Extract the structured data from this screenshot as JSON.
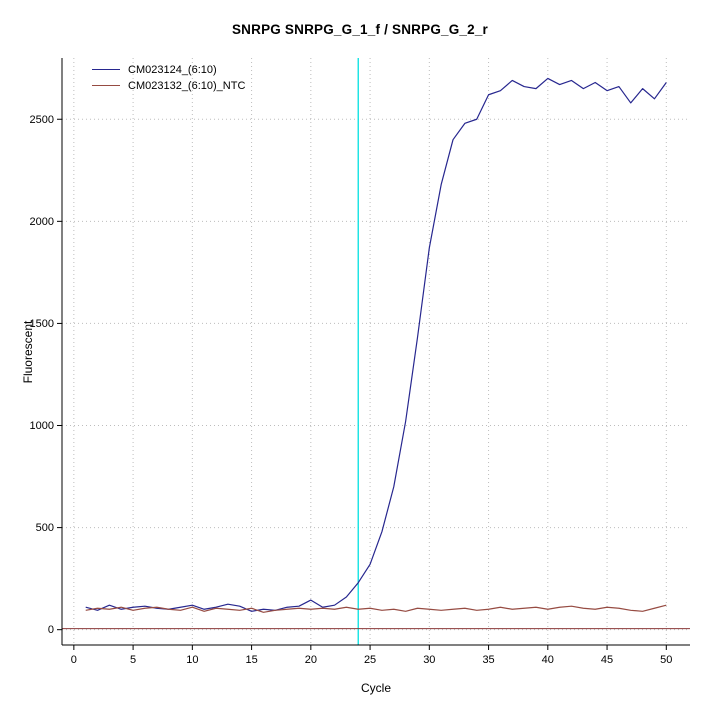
{
  "chart_data": {
    "type": "line",
    "title": "SNRPG  SNRPG_G_1_f / SNRPG_G_2_r",
    "xlabel": "Cycle",
    "ylabel": "Fluorescent",
    "xlim": [
      -1,
      52
    ],
    "ylim": [
      -75,
      2800
    ],
    "x_ticks": [
      0,
      5,
      10,
      15,
      20,
      25,
      30,
      35,
      40,
      45,
      50
    ],
    "y_ticks": [
      0,
      500,
      1000,
      1500,
      2000,
      2500
    ],
    "grid": "dotted",
    "grid_color": "#bdbdbd",
    "axis_color": "#000000",
    "legend_position": "top-left",
    "vline": {
      "x": 24,
      "color": "#00e0e0"
    },
    "baseline": {
      "y": 5,
      "color": "#8b3a3a"
    },
    "x": [
      1,
      2,
      3,
      4,
      5,
      6,
      7,
      8,
      9,
      10,
      11,
      12,
      13,
      14,
      15,
      16,
      17,
      18,
      19,
      20,
      21,
      22,
      23,
      24,
      25,
      26,
      27,
      28,
      29,
      30,
      31,
      32,
      33,
      34,
      35,
      36,
      37,
      38,
      39,
      40,
      41,
      42,
      43,
      44,
      45,
      46,
      47,
      48,
      49,
      50
    ],
    "series": [
      {
        "name": "CM023124_(6:10)",
        "color": "#27278f",
        "values": [
          110,
          95,
          120,
          100,
          110,
          115,
          105,
          100,
          110,
          120,
          100,
          110,
          125,
          115,
          90,
          100,
          95,
          110,
          115,
          145,
          110,
          120,
          160,
          230,
          320,
          480,
          700,
          1020,
          1430,
          1870,
          2180,
          2400,
          2480,
          2500,
          2620,
          2640,
          2690,
          2660,
          2650,
          2700,
          2670,
          2690,
          2650,
          2680,
          2640,
          2660,
          2580,
          2650,
          2600,
          2680
        ]
      },
      {
        "name": "CM023132_(6:10)_NTC",
        "color": "#964b42",
        "values": [
          95,
          105,
          100,
          110,
          95,
          105,
          110,
          100,
          95,
          110,
          90,
          105,
          100,
          95,
          105,
          85,
          95,
          100,
          105,
          100,
          105,
          100,
          110,
          100,
          105,
          95,
          100,
          90,
          105,
          100,
          95,
          100,
          105,
          95,
          100,
          110,
          100,
          105,
          110,
          100,
          110,
          115,
          105,
          100,
          110,
          105,
          95,
          90,
          105,
          120
        ]
      }
    ]
  }
}
